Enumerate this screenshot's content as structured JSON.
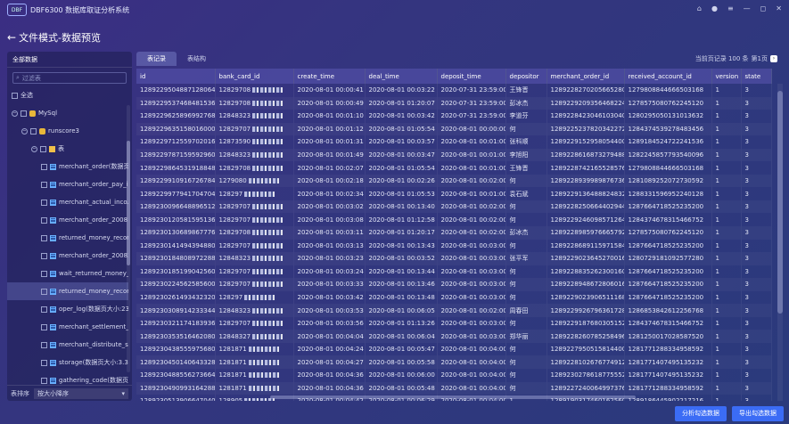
{
  "app": {
    "logo": "DBF",
    "title": "DBF6300 数据库取证分析系统"
  },
  "header": {
    "title": "文件模式-数据预览"
  },
  "sidebar": {
    "title": "全部数据",
    "search_placeholder": "过滤表",
    "sort_label": "表排序",
    "sort_value": "按大小降序",
    "tree": [
      {
        "label": "全选",
        "level": 0,
        "kind": "check",
        "toggle": ""
      },
      {
        "label": "MySql",
        "level": 0,
        "kind": "db",
        "toggle": "−"
      },
      {
        "label": "runscore3",
        "level": 1,
        "kind": "db",
        "toggle": "−"
      },
      {
        "label": "表",
        "level": 2,
        "kind": "folder",
        "toggle": "−"
      },
      {
        "label": "merchant_order(数据页...",
        "level": 3,
        "kind": "table",
        "toggle": ""
      },
      {
        "label": "merchant_order_pay_i...",
        "level": 3,
        "kind": "table",
        "toggle": ""
      },
      {
        "label": "merchant_actual_inco...",
        "level": 3,
        "kind": "table",
        "toggle": ""
      },
      {
        "label": "merchant_order_20081...",
        "level": 3,
        "kind": "table",
        "toggle": ""
      },
      {
        "label": "returned_money_recor...",
        "level": 3,
        "kind": "table",
        "toggle": ""
      },
      {
        "label": "merchant_order_20082...",
        "level": 3,
        "kind": "table",
        "toggle": ""
      },
      {
        "label": "wait_returned_money_...",
        "level": 3,
        "kind": "table",
        "toggle": ""
      },
      {
        "label": "returned_money_recor...",
        "level": 3,
        "kind": "table",
        "toggle": "",
        "selected": true
      },
      {
        "label": "oper_log(数据页大小:23...",
        "level": 3,
        "kind": "table",
        "toggle": ""
      },
      {
        "label": "merchant_settlement_r...",
        "level": 3,
        "kind": "table",
        "toggle": ""
      },
      {
        "label": "merchant_distribute_s...",
        "level": 3,
        "kind": "table",
        "toggle": ""
      },
      {
        "label": "storage(数据页大小:3.3...",
        "level": 3,
        "kind": "table",
        "toggle": ""
      },
      {
        "label": "gathering_code(数据页...",
        "level": 3,
        "kind": "table",
        "toggle": ""
      },
      {
        "label": "gathering_channel_rat...",
        "level": 3,
        "kind": "table",
        "toggle": ""
      }
    ]
  },
  "tabs": [
    {
      "label": "表记录"
    },
    {
      "label": "表结构"
    }
  ],
  "pager": {
    "info": "当前页记录 100 条",
    "page": "第1页",
    "next": "›"
  },
  "table": {
    "columns": [
      "id",
      "bank_card_id",
      "create_time",
      "deal_time",
      "deposit_time",
      "depositor",
      "merchant_order_id",
      "received_account_id",
      "version",
      "state"
    ],
    "rows": [
      [
        "1289229504887128064",
        "12829708",
        "2020-08-01 00:00:41",
        "2020-08-01 00:03:22",
        "2020-07-31 23:59:00",
        "王锋晋",
        "1289228270205665280",
        "1279808844666503168",
        "1",
        "3"
      ],
      [
        "1289229537468481536",
        "12829708",
        "2020-08-01 00:00:49",
        "2020-08-01 01:20:07",
        "2020-07-31 23:59:00",
        "彭冰杰",
        "1289229209356468224",
        "1278575080762245120",
        "1",
        "3"
      ],
      [
        "1289229625896992768",
        "12848323",
        "2020-08-01 00:01:10",
        "2020-08-01 00:03:42",
        "2020-07-31 23:59:00",
        "李道芬",
        "1289228423046103040",
        "1280295050131013632",
        "1",
        "3"
      ],
      [
        "1289229635158016000",
        "12829707",
        "2020-08-01 00:01:12",
        "2020-08-01 01:05:54",
        "2020-08-01 00:00:00",
        "何",
        "1289225237820342272",
        "1284374539278483456",
        "1",
        "3"
      ],
      [
        "1289229712559702016",
        "12873590",
        "2020-08-01 00:01:31",
        "2020-08-01 00:03:57",
        "2020-08-01 00:01:00",
        "张科顺",
        "1289229152958054400",
        "1289184524722241536",
        "1",
        "3"
      ],
      [
        "1289229787159592960",
        "12848323",
        "2020-08-01 00:01:49",
        "2020-08-01 00:03:47",
        "2020-08-01 00:01:00",
        "李旭阳",
        "1289228616873279488",
        "1282245857793540096",
        "1",
        "3"
      ],
      [
        "1289229864531918848",
        "12829708",
        "2020-08-01 00:02:07",
        "2020-08-01 01:05:54",
        "2020-08-01 00:01:00",
        "王锋晋",
        "1289228742165528576",
        "1279808844666503168",
        "1",
        "3"
      ],
      [
        "1289229910916726784",
        "1279080",
        "2020-08-01 00:02:18",
        "2020-08-01 00:02:26",
        "2020-08-01 00:02:00",
        "何",
        "1289228939989876736",
        "1281089252072730592",
        "1",
        "3"
      ],
      [
        "1289229977941704704",
        "128297",
        "2020-08-01 00:02:34",
        "2020-08-01 01:05:53",
        "2020-08-01 00:01:00",
        "袁石斌",
        "1289229136488824832",
        "1288331596952240128",
        "1",
        "3"
      ],
      [
        "1289230096648896512",
        "12829707",
        "2020-08-01 00:03:02",
        "2020-08-01 00:13:40",
        "2020-08-01 00:02:00",
        "何",
        "1289228250664402944",
        "1287664718525235200",
        "1",
        "3"
      ],
      [
        "1289230120581595136",
        "12829707",
        "2020-08-01 00:03:08",
        "2020-08-01 01:12:58",
        "2020-08-01 00:02:00",
        "何",
        "1289229246098571264",
        "1284374678315466752",
        "1",
        "3"
      ],
      [
        "1289230130689867776",
        "12829708",
        "2020-08-01 00:03:11",
        "2020-08-01 01:20:17",
        "2020-08-01 00:02:00",
        "彭冰杰",
        "1289228985976665792",
        "1278575080762245120",
        "1",
        "3"
      ],
      [
        "1289230141494394880",
        "12829707",
        "2020-08-01 00:03:13",
        "2020-08-01 00:13:43",
        "2020-08-01 00:03:00",
        "何",
        "1289228689115971584",
        "1287664718525235200",
        "1",
        "3"
      ],
      [
        "1289230184808972288",
        "12848323",
        "2020-08-01 00:03:23",
        "2020-08-01 00:03:52",
        "2020-08-01 00:03:00",
        "张平军",
        "1289229023645270016",
        "1280729181092577280",
        "1",
        "3"
      ],
      [
        "1289230185199042560",
        "12829707",
        "2020-08-01 00:03:24",
        "2020-08-01 00:13:44",
        "2020-08-01 00:03:00",
        "何",
        "1289228835262300160",
        "1287664718525235200",
        "1",
        "3"
      ],
      [
        "1289230224562585600",
        "12829707",
        "2020-08-01 00:03:33",
        "2020-08-01 00:13:46",
        "2020-08-01 00:03:00",
        "何",
        "1289228948672806016",
        "1287664718525235200",
        "1",
        "3"
      ],
      [
        "1289230261493432320",
        "128297",
        "2020-08-01 00:03:42",
        "2020-08-01 00:13:48",
        "2020-08-01 00:03:00",
        "何",
        "1289229023906511168",
        "1287664718525235200",
        "1",
        "3"
      ],
      [
        "1289230308914233344",
        "12848323",
        "2020-08-01 00:03:53",
        "2020-08-01 00:06:05",
        "2020-08-01 00:02:00",
        "周春田",
        "1289229926796361728",
        "1286853842612256768",
        "1",
        "3"
      ],
      [
        "1289230321174183936",
        "12829707",
        "2020-08-01 00:03:56",
        "2020-08-01 01:13:26",
        "2020-08-01 00:03:00",
        "何",
        "1289229187680305152",
        "1284374678315466752",
        "1",
        "3"
      ],
      [
        "1289230353516462080",
        "12848327",
        "2020-08-01 00:04:04",
        "2020-08-01 00:06:04",
        "2020-08-01 00:03:00",
        "郑华丽",
        "1289228260785258496",
        "1281250017028587520",
        "1",
        "3"
      ],
      [
        "1289230438555975680",
        "1281871",
        "2020-08-01 00:04:24",
        "2020-08-01 00:05:47",
        "2020-08-01 00:04:00",
        "何",
        "1289227950515814400",
        "1281771288334958592",
        "1",
        "3"
      ],
      [
        "1289230450140643328",
        "1281871",
        "2020-08-01 00:04:27",
        "2020-08-01 00:05:58",
        "2020-08-01 00:04:00",
        "何",
        "1289228102676774912",
        "1281771407495135232",
        "1",
        "3"
      ],
      [
        "1289230488556273664",
        "1281871",
        "2020-08-01 00:04:36",
        "2020-08-01 00:06:00",
        "2020-08-01 00:04:00",
        "何",
        "1289230278618775552",
        "1281771407495135232",
        "1",
        "3"
      ],
      [
        "1289230490993164288",
        "1281871",
        "2020-08-01 00:04:36",
        "2020-08-01 00:05:48",
        "2020-08-01 00:04:00",
        "何",
        "1289227240064997376",
        "1281771288334958592",
        "1",
        "3"
      ],
      [
        "1289230513906647040",
        "128905",
        "2020-08-01 00:04:42",
        "2020-08-01 00:06:29",
        "2020-08-01 00:04:00",
        "1",
        "1289190317460162560",
        "1289186445902217216",
        "1",
        "3"
      ]
    ]
  },
  "actions": {
    "analyze_label": "分析勾选数据",
    "export_label": "导出勾选数据"
  },
  "colors": {
    "accent": "#3b6cf5"
  }
}
